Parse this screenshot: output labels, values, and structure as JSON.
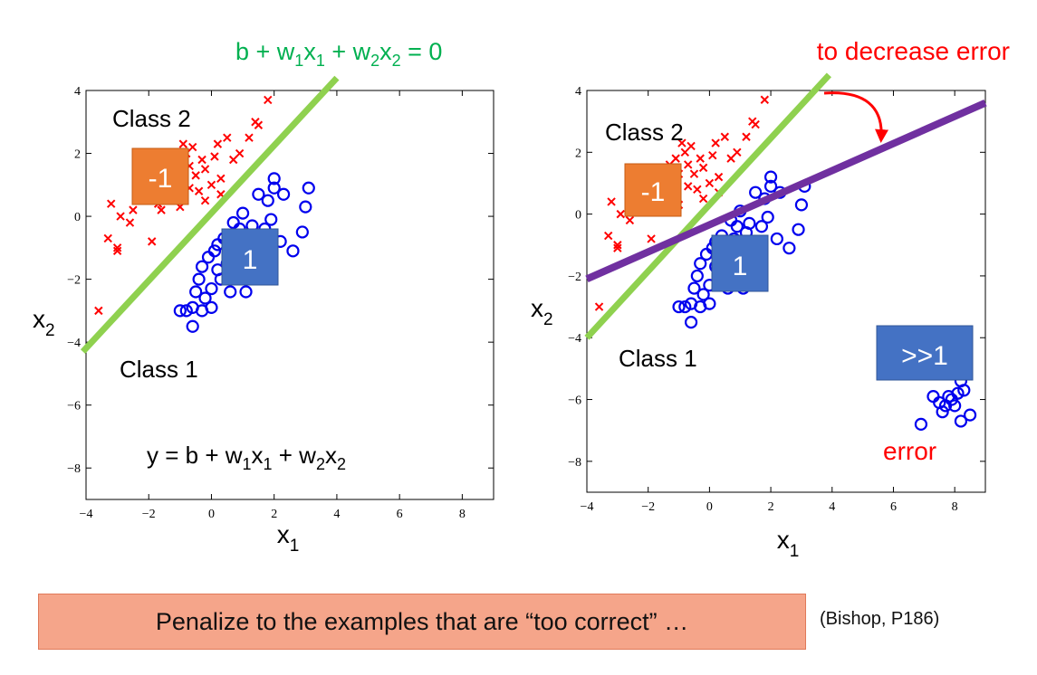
{
  "chart_data": [
    {
      "type": "scatter",
      "xlim": [
        -4,
        9
      ],
      "ylim": [
        -9,
        4
      ],
      "xticks": [
        -4,
        -2,
        0,
        2,
        4,
        6,
        8
      ],
      "yticks": [
        -8,
        -6,
        -4,
        -2,
        0,
        2,
        4
      ],
      "tick_labels_x": [
        "−4",
        "−2",
        "0",
        "2",
        "4",
        "6",
        "8"
      ],
      "tick_labels_y": [
        "−8",
        "−6",
        "−4",
        "−2",
        "0",
        "2",
        "4"
      ],
      "xlabel": {
        "base": "x",
        "sub": "1"
      },
      "ylabel": {
        "base": "x",
        "sub": "2"
      },
      "grid": false,
      "class2_label": "Class 2",
      "class1_label": "Class 1",
      "class2_target": "-1",
      "class1_target": "1",
      "boundary_label": {
        "parts": [
          "b + w",
          "1",
          "x",
          "1",
          " + w",
          "2",
          "x",
          "2",
          " = 0"
        ]
      },
      "formula": {
        "parts": [
          "y = b + w",
          "1",
          "x",
          "1",
          " + w",
          "2",
          "x",
          "2"
        ]
      },
      "boundary_color": "#8fd14f",
      "series": [
        {
          "marker": "x",
          "color": "#ff0000",
          "points": [
            [
              -3.6,
              -3.0
            ],
            [
              -3.3,
              -0.7
            ],
            [
              -3.2,
              0.4
            ],
            [
              -3.0,
              -1.0
            ],
            [
              -3.0,
              -1.1
            ],
            [
              -2.9,
              0.0
            ],
            [
              -2.6,
              -0.2
            ],
            [
              -2.5,
              0.2
            ],
            [
              -2.3,
              0.8
            ],
            [
              -2.0,
              0.7
            ],
            [
              -1.9,
              -0.8
            ],
            [
              -1.7,
              0.4
            ],
            [
              -1.6,
              0.2
            ],
            [
              -1.5,
              1.0
            ],
            [
              -1.4,
              0.6
            ],
            [
              -1.3,
              1.6
            ],
            [
              -1.2,
              0.9
            ],
            [
              -1.1,
              1.8
            ],
            [
              -1.0,
              1.3
            ],
            [
              -1.0,
              0.3
            ],
            [
              -0.9,
              2.3
            ],
            [
              -0.8,
              2.0
            ],
            [
              -0.7,
              1.6
            ],
            [
              -0.7,
              0.9
            ],
            [
              -0.6,
              2.2
            ],
            [
              -0.5,
              1.3
            ],
            [
              -0.4,
              0.8
            ],
            [
              -0.3,
              1.8
            ],
            [
              -0.2,
              1.5
            ],
            [
              -0.2,
              0.5
            ],
            [
              0.0,
              1.0
            ],
            [
              0.1,
              1.9
            ],
            [
              0.2,
              2.3
            ],
            [
              0.3,
              1.2
            ],
            [
              0.3,
              0.7
            ],
            [
              0.5,
              2.5
            ],
            [
              0.7,
              1.8
            ],
            [
              0.9,
              2.0
            ],
            [
              1.2,
              2.5
            ],
            [
              1.4,
              3.0
            ],
            [
              1.5,
              2.9
            ],
            [
              1.8,
              3.7
            ]
          ]
        },
        {
          "marker": "o",
          "color": "#0000ee",
          "points": [
            [
              -1.0,
              -3.0
            ],
            [
              -0.8,
              -3.0
            ],
            [
              -0.6,
              -3.5
            ],
            [
              -0.6,
              -2.9
            ],
            [
              -0.5,
              -2.4
            ],
            [
              -0.4,
              -2.0
            ],
            [
              -0.3,
              -3.0
            ],
            [
              -0.3,
              -1.6
            ],
            [
              -0.2,
              -2.6
            ],
            [
              -0.1,
              -1.3
            ],
            [
              0.0,
              -2.3
            ],
            [
              0.0,
              -2.9
            ],
            [
              0.1,
              -1.1
            ],
            [
              0.2,
              -1.7
            ],
            [
              0.2,
              -0.9
            ],
            [
              0.3,
              -2.0
            ],
            [
              0.4,
              -0.7
            ],
            [
              0.5,
              -1.5
            ],
            [
              0.6,
              -2.4
            ],
            [
              0.7,
              -0.2
            ],
            [
              0.8,
              -1.3
            ],
            [
              0.8,
              -0.8
            ],
            [
              0.9,
              -0.4
            ],
            [
              1.0,
              -1.1
            ],
            [
              1.0,
              0.1
            ],
            [
              1.1,
              -2.4
            ],
            [
              1.2,
              -0.6
            ],
            [
              1.2,
              -1.7
            ],
            [
              1.3,
              -0.3
            ],
            [
              1.4,
              -0.9
            ],
            [
              1.5,
              0.7
            ],
            [
              1.6,
              -1.2
            ],
            [
              1.7,
              -0.4
            ],
            [
              1.8,
              0.5
            ],
            [
              1.9,
              -0.1
            ],
            [
              2.0,
              0.9
            ],
            [
              2.0,
              1.2
            ],
            [
              2.2,
              -0.8
            ],
            [
              2.3,
              0.7
            ],
            [
              2.6,
              -1.1
            ],
            [
              2.9,
              -0.5
            ],
            [
              3.0,
              0.3
            ],
            [
              3.1,
              0.9
            ]
          ]
        }
      ]
    },
    {
      "type": "scatter",
      "xlim": [
        -4,
        9
      ],
      "ylim": [
        -9,
        4
      ],
      "xticks": [
        -4,
        -2,
        0,
        2,
        4,
        6,
        8
      ],
      "yticks": [
        -8,
        -6,
        -4,
        -2,
        0,
        2,
        4
      ],
      "tick_labels_x": [
        "−4",
        "−2",
        "0",
        "2",
        "4",
        "6",
        "8"
      ],
      "tick_labels_y": [
        "−8",
        "−6",
        "−4",
        "−2",
        "0",
        "2",
        "4"
      ],
      "xlabel": {
        "base": "x",
        "sub": "1"
      },
      "ylabel": {
        "base": "x",
        "sub": "2"
      },
      "grid": false,
      "class2_label": "Class 2",
      "class1_label": "Class 1",
      "class2_target": "-1",
      "class1_target": "1",
      "outlier_target": ">>1",
      "annotation_top": "to decrease error",
      "annotation_error": "error",
      "boundary_color": "#8fd14f",
      "shifted_boundary_color": "#7030a0",
      "annotation_color": "#ff0000",
      "series": [
        {
          "marker": "x",
          "color": "#ff0000",
          "points": [
            [
              -3.6,
              -3.0
            ],
            [
              -3.3,
              -0.7
            ],
            [
              -3.2,
              0.4
            ],
            [
              -3.0,
              -1.0
            ],
            [
              -3.0,
              -1.1
            ],
            [
              -2.9,
              0.0
            ],
            [
              -2.6,
              -0.2
            ],
            [
              -2.5,
              0.2
            ],
            [
              -2.3,
              0.8
            ],
            [
              -2.0,
              0.7
            ],
            [
              -1.9,
              -0.8
            ],
            [
              -1.7,
              0.4
            ],
            [
              -1.6,
              0.2
            ],
            [
              -1.5,
              1.0
            ],
            [
              -1.4,
              0.6
            ],
            [
              -1.3,
              1.6
            ],
            [
              -1.2,
              0.9
            ],
            [
              -1.1,
              1.8
            ],
            [
              -1.0,
              1.3
            ],
            [
              -1.0,
              0.3
            ],
            [
              -0.9,
              2.3
            ],
            [
              -0.8,
              2.0
            ],
            [
              -0.7,
              1.6
            ],
            [
              -0.7,
              0.9
            ],
            [
              -0.6,
              2.2
            ],
            [
              -0.5,
              1.3
            ],
            [
              -0.4,
              0.8
            ],
            [
              -0.3,
              1.8
            ],
            [
              -0.2,
              1.5
            ],
            [
              -0.2,
              0.5
            ],
            [
              0.0,
              1.0
            ],
            [
              0.1,
              1.9
            ],
            [
              0.2,
              2.3
            ],
            [
              0.3,
              1.2
            ],
            [
              0.3,
              0.7
            ],
            [
              0.5,
              2.5
            ],
            [
              0.7,
              1.8
            ],
            [
              0.9,
              2.0
            ],
            [
              1.2,
              2.5
            ],
            [
              1.4,
              3.0
            ],
            [
              1.5,
              2.9
            ],
            [
              1.8,
              3.7
            ]
          ]
        },
        {
          "marker": "o",
          "color": "#0000ee",
          "points": [
            [
              -1.0,
              -3.0
            ],
            [
              -0.8,
              -3.0
            ],
            [
              -0.6,
              -3.5
            ],
            [
              -0.6,
              -2.9
            ],
            [
              -0.5,
              -2.4
            ],
            [
              -0.4,
              -2.0
            ],
            [
              -0.3,
              -3.0
            ],
            [
              -0.3,
              -1.6
            ],
            [
              -0.2,
              -2.6
            ],
            [
              -0.1,
              -1.3
            ],
            [
              0.0,
              -2.3
            ],
            [
              0.0,
              -2.9
            ],
            [
              0.1,
              -1.1
            ],
            [
              0.2,
              -1.7
            ],
            [
              0.2,
              -0.9
            ],
            [
              0.3,
              -2.0
            ],
            [
              0.4,
              -0.7
            ],
            [
              0.5,
              -1.5
            ],
            [
              0.6,
              -2.4
            ],
            [
              0.7,
              -0.2
            ],
            [
              0.8,
              -1.3
            ],
            [
              0.8,
              -0.8
            ],
            [
              0.9,
              -0.4
            ],
            [
              1.0,
              -1.1
            ],
            [
              1.0,
              0.1
            ],
            [
              1.1,
              -2.4
            ],
            [
              1.2,
              -0.6
            ],
            [
              1.2,
              -1.7
            ],
            [
              1.3,
              -0.3
            ],
            [
              1.4,
              -0.9
            ],
            [
              1.5,
              0.7
            ],
            [
              1.6,
              -1.2
            ],
            [
              1.7,
              -0.4
            ],
            [
              1.8,
              0.5
            ],
            [
              1.9,
              -0.1
            ],
            [
              2.0,
              0.9
            ],
            [
              2.0,
              1.2
            ],
            [
              2.2,
              -0.8
            ],
            [
              2.3,
              0.7
            ],
            [
              2.6,
              -1.1
            ],
            [
              2.9,
              -0.5
            ],
            [
              3.0,
              0.3
            ],
            [
              3.1,
              0.9
            ],
            [
              6.9,
              -6.8
            ],
            [
              7.3,
              -5.9
            ],
            [
              7.5,
              -6.1
            ],
            [
              7.6,
              -6.4
            ],
            [
              7.7,
              -6.2
            ],
            [
              7.8,
              -5.9
            ],
            [
              7.9,
              -6.0
            ],
            [
              8.0,
              -6.2
            ],
            [
              8.1,
              -5.8
            ],
            [
              8.2,
              -5.4
            ],
            [
              8.2,
              -6.7
            ],
            [
              8.3,
              -5.7
            ],
            [
              8.5,
              -6.5
            ]
          ]
        }
      ]
    }
  ],
  "footer": {
    "banner_text": "Penalize to the examples that are “too correct” …",
    "citation": "(Bishop, P186)",
    "banner_color": "#f5a58a"
  }
}
